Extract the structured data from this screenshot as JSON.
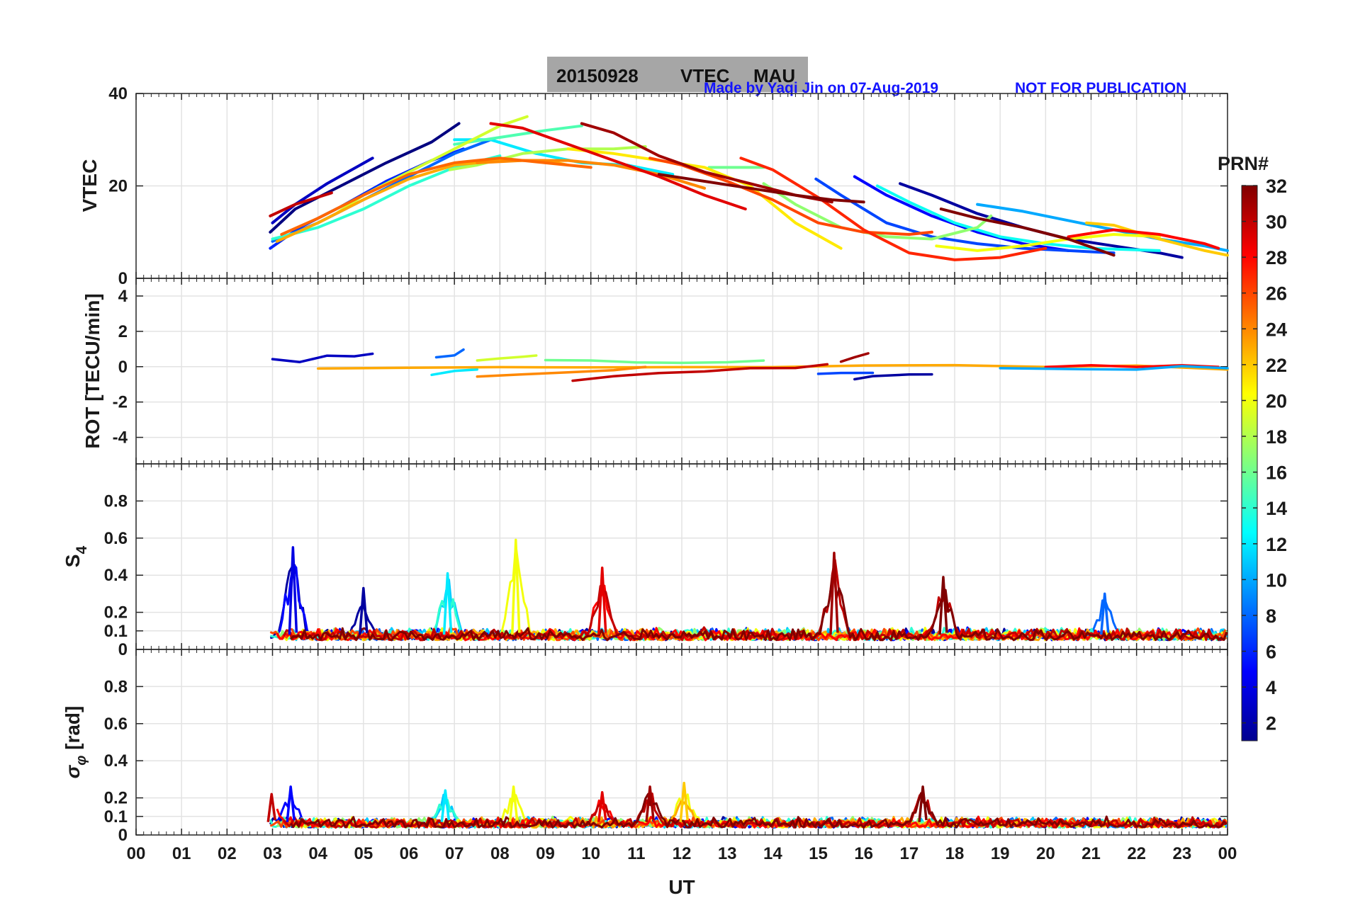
{
  "title": {
    "date": "20150928",
    "product": "VTEC",
    "station": "MAU",
    "credit": "Made by Yaqi Jin on 07-Aug-2019",
    "notice": "NOT FOR PUBLICATION",
    "box_color": "#a6a6a6",
    "note_color": "#1414ff"
  },
  "colorbar": {
    "title": "PRN#",
    "range": [
      1,
      32
    ],
    "ticks": [
      "2",
      "4",
      "6",
      "8",
      "10",
      "12",
      "14",
      "16",
      "18",
      "20",
      "22",
      "24",
      "26",
      "28",
      "30",
      "32"
    ],
    "colormap": "jet"
  },
  "x_axis": {
    "label": "UT",
    "range": [
      0,
      24
    ],
    "ticks": [
      "00",
      "01",
      "02",
      "03",
      "04",
      "05",
      "06",
      "07",
      "08",
      "09",
      "10",
      "11",
      "12",
      "13",
      "14",
      "15",
      "16",
      "17",
      "18",
      "19",
      "20",
      "21",
      "22",
      "23",
      "00"
    ]
  },
  "chart_data": [
    {
      "type": "line",
      "panel": "vtec",
      "ylabel": "VTEC",
      "ylim": [
        0,
        40
      ],
      "yticks": [
        "0",
        "20",
        "40"
      ],
      "xlim": [
        0,
        24
      ],
      "grid": true,
      "series": [
        {
          "prn": 1,
          "x": [
            2.95,
            3.5,
            4.5,
            5.5,
            6.5,
            7.1
          ],
          "y": [
            10,
            15,
            20,
            25,
            29.5,
            33.5
          ]
        },
        {
          "prn": 2,
          "x": [
            16.8,
            17.5,
            18.5,
            19.5,
            20.5,
            21.5,
            22.5,
            23
          ],
          "y": [
            20.5,
            18,
            14,
            11,
            8.5,
            7,
            5.5,
            4.5
          ]
        },
        {
          "prn": 3,
          "x": [
            3.0,
            3.5,
            4.2,
            5.2
          ],
          "y": [
            12,
            16,
            20.5,
            26
          ]
        },
        {
          "prn": 5,
          "x": [
            15.8,
            16.5,
            17.5,
            18.5,
            19.5,
            20.5
          ],
          "y": [
            22,
            18,
            13.5,
            10,
            7.5,
            6
          ]
        },
        {
          "prn": 6,
          "x": [
            2.95,
            3.6,
            4.5,
            5.5,
            6.5,
            7.2
          ],
          "y": [
            6.5,
            11,
            15.5,
            21,
            25.5,
            28
          ]
        },
        {
          "prn": 7,
          "x": [
            14.95,
            15.5,
            16.5,
            17.5,
            18.5,
            19.5,
            20.5,
            21.5
          ],
          "y": [
            21.5,
            18,
            12,
            9,
            7.5,
            6.5,
            6,
            5.5
          ]
        },
        {
          "prn": 8,
          "x": [
            3.0,
            4.0,
            5.0,
            6.0,
            7.0,
            7.8
          ],
          "y": [
            8,
            12,
            17,
            22,
            27,
            30
          ]
        },
        {
          "prn": 10,
          "x": [
            18.5,
            19.5,
            20.5,
            21.5,
            22.5,
            23.5,
            24
          ],
          "y": [
            16,
            14.5,
            12.5,
            10.5,
            8.5,
            7,
            6
          ]
        },
        {
          "prn": 12,
          "x": [
            7.0,
            7.8,
            8.8,
            9.8,
            10.8,
            11.8
          ],
          "y": [
            30,
            30,
            27,
            25,
            24.5,
            22.5
          ]
        },
        {
          "prn": 13,
          "x": [
            16.3,
            17,
            18,
            19,
            20,
            21,
            22.5
          ],
          "y": [
            20,
            16.5,
            12,
            9,
            7.5,
            6.5,
            6
          ]
        },
        {
          "prn": 14,
          "x": [
            3.0,
            4.0,
            5.0,
            6.0,
            7.0,
            8.0
          ],
          "y": [
            8.5,
            11,
            15,
            20,
            24,
            26.5
          ]
        },
        {
          "prn": 15,
          "x": [
            7.0,
            8.0,
            9.0,
            9.8
          ],
          "y": [
            29,
            30.5,
            32,
            33
          ]
        },
        {
          "prn": 16,
          "x": [
            12.6,
            13.2,
            13.8
          ],
          "y": [
            24,
            24,
            24
          ]
        },
        {
          "prn": 17,
          "x": [
            13.8,
            14.5,
            15.5,
            16.5,
            17.5,
            18.5,
            18.8
          ],
          "y": [
            20.5,
            16,
            11,
            9,
            8.5,
            11,
            13.5
          ]
        },
        {
          "prn": 18,
          "x": [
            6.9,
            7.5,
            8.5,
            9.5,
            10.5,
            11.2
          ],
          "y": [
            23.5,
            24.5,
            27,
            28,
            28,
            28.5
          ]
        },
        {
          "prn": 19,
          "x": [
            4.4,
            5.0,
            6.0,
            7.0,
            8.0,
            8.6
          ],
          "y": [
            14,
            18,
            23,
            28,
            33,
            35
          ]
        },
        {
          "prn": 20,
          "x": [
            17.6,
            18.5,
            19.5,
            20.5,
            21.5,
            22.5
          ],
          "y": [
            7,
            6,
            7,
            8.5,
            9.5,
            9
          ]
        },
        {
          "prn": 21,
          "x": [
            9.5,
            10.5,
            11.5,
            12.5,
            13.5,
            14.5,
            15.5
          ],
          "y": [
            28,
            27,
            25.5,
            24,
            20,
            12,
            6.5
          ]
        },
        {
          "prn": 22,
          "x": [
            20.9,
            21.5,
            22.5,
            23.5,
            24
          ],
          "y": [
            12,
            11.5,
            8.5,
            6,
            5
          ]
        },
        {
          "prn": 23,
          "x": [
            3.1,
            4.0,
            5.0,
            6.0,
            7.0,
            8.0,
            9.0,
            9.5
          ],
          "y": [
            8,
            12,
            17,
            21.5,
            24.5,
            25.5,
            25.5,
            24.5
          ]
        },
        {
          "prn": 24,
          "x": [
            7.5,
            8.5,
            9.5,
            10.5,
            11.5,
            12.5
          ],
          "y": [
            25,
            25.5,
            25.5,
            24.5,
            22.5,
            19.5
          ]
        },
        {
          "prn": 25,
          "x": [
            3.2,
            4.0,
            5.0,
            6.0,
            7.0,
            8.0,
            9.0,
            10.0
          ],
          "y": [
            9.5,
            13,
            18,
            22.5,
            25,
            26,
            25,
            24
          ]
        },
        {
          "prn": 26,
          "x": [
            11.3,
            12,
            13,
            14,
            15,
            16,
            17,
            17.5
          ],
          "y": [
            26,
            24.5,
            21,
            17,
            12,
            10,
            9.5,
            10
          ]
        },
        {
          "prn": 27,
          "x": [
            13.3,
            14,
            15,
            16,
            17,
            18,
            19,
            20
          ],
          "y": [
            26,
            23.5,
            17.5,
            10.5,
            5.5,
            4,
            4.5,
            6.5
          ]
        },
        {
          "prn": 28,
          "x": [
            20.5,
            21.5,
            22.5,
            23.5,
            23.8
          ],
          "y": [
            9,
            10.5,
            9.5,
            7.5,
            6.5
          ]
        },
        {
          "prn": 29,
          "x": [
            7.8,
            8.5,
            9.5,
            10.5,
            11.5,
            12.5,
            13.4
          ],
          "y": [
            33.5,
            32.5,
            29,
            25.5,
            22,
            18,
            15
          ]
        },
        {
          "prn": 30,
          "x": [
            2.95,
            3.5,
            4.3
          ],
          "y": [
            13.5,
            16,
            18.5
          ]
        },
        {
          "prn": 31,
          "x": [
            9.8,
            10.5,
            11.5,
            12.5,
            13.5,
            14.5,
            15.3
          ],
          "y": [
            33.5,
            31.5,
            26.5,
            23,
            20.5,
            18,
            16.5
          ]
        },
        {
          "prn": 32,
          "x": [
            11.5,
            12.5,
            13.5,
            14.5,
            15.3,
            16
          ],
          "y": [
            22.5,
            21,
            19.5,
            18,
            17,
            16.5
          ]
        },
        {
          "prn": 32,
          "x": [
            17.7,
            18.5,
            19.5,
            20.5,
            21.5
          ],
          "y": [
            15,
            13,
            11,
            8.5,
            5
          ]
        }
      ]
    },
    {
      "type": "line",
      "panel": "rot",
      "ylabel": "ROT [TECU/min]",
      "ylim": [
        -5.5,
        5
      ],
      "yticks": [
        "-4",
        "-2",
        "0",
        "2",
        "4"
      ],
      "xlim": [
        0,
        24
      ],
      "grid": true,
      "series": [
        {
          "prn": 3,
          "x": [
            3.0,
            3.6,
            4.2,
            4.8,
            5.2
          ],
          "y": [
            0.4,
            0.3,
            0.6,
            0.5,
            0.7
          ]
        },
        {
          "prn": 8,
          "x": [
            6.6,
            7.0,
            7.2
          ],
          "y": [
            0.5,
            0.7,
            0.9
          ]
        },
        {
          "prn": 12,
          "x": [
            6.5,
            7.0,
            7.5
          ],
          "y": [
            -0.5,
            -0.3,
            -0.2
          ]
        },
        {
          "prn": 16,
          "x": [
            9.0,
            10.0,
            11.0,
            12.0,
            13.0,
            13.8
          ],
          "y": [
            0.4,
            0.3,
            0.3,
            0.2,
            0.3,
            0.4
          ]
        },
        {
          "prn": 19,
          "x": [
            7.5,
            8.0,
            8.5,
            8.8
          ],
          "y": [
            0.3,
            0.4,
            0.5,
            0.7
          ]
        },
        {
          "prn": 23,
          "x": [
            4.0,
            6.0,
            8.0,
            10.0,
            12.0,
            14.0,
            16.0,
            18.0,
            20.0,
            22.0,
            24.0
          ],
          "y": [
            -0.1,
            -0.1,
            0.0,
            0.0,
            0.0,
            -0.1,
            0.0,
            0.1,
            0.0,
            0.0,
            -0.1
          ]
        },
        {
          "prn": 24,
          "x": [
            7.5,
            8.5,
            9.5,
            10.5,
            11.2
          ],
          "y": [
            -0.5,
            -0.4,
            -0.3,
            -0.2,
            -0.1
          ]
        },
        {
          "prn": 7,
          "x": [
            15.0,
            15.5,
            16.2
          ],
          "y": [
            -0.4,
            -0.4,
            -0.3
          ]
        },
        {
          "prn": 2,
          "x": [
            15.8,
            16.2,
            17.0,
            17.5
          ],
          "y": [
            -0.7,
            -0.6,
            -0.5,
            -0.4
          ]
        },
        {
          "prn": 30,
          "x": [
            9.6,
            10.5,
            11.5,
            12.5,
            13.5,
            14.5,
            15.2
          ],
          "y": [
            -0.8,
            -0.6,
            -0.4,
            -0.2,
            -0.1,
            0.0,
            0.1
          ]
        },
        {
          "prn": 31,
          "x": [
            15.5,
            15.8,
            16.1
          ],
          "y": [
            0.3,
            0.5,
            0.8
          ]
        },
        {
          "prn": 28,
          "x": [
            20.0,
            21.0,
            22.0,
            23.0,
            23.8
          ],
          "y": [
            0.0,
            0.1,
            0.0,
            0.0,
            0.0
          ]
        },
        {
          "prn": 10,
          "x": [
            19.0,
            21.0,
            22.0,
            23.0,
            24.0
          ],
          "y": [
            0.0,
            -0.1,
            -0.1,
            0.0,
            0.0
          ]
        }
      ]
    },
    {
      "type": "line",
      "panel": "s4",
      "ylabel": "S4",
      "ylim": [
        0,
        1
      ],
      "yticks": [
        "0",
        "0.1",
        "0.2",
        "0.4",
        "0.6",
        "0.8"
      ],
      "xlim": [
        0,
        24
      ],
      "grid": true,
      "peaks": [
        {
          "prn": 4,
          "x": 3.45,
          "y": 0.55
        },
        {
          "prn": 2,
          "x": 5.0,
          "y": 0.33
        },
        {
          "prn": 12,
          "x": 6.85,
          "y": 0.41
        },
        {
          "prn": 20,
          "x": 8.35,
          "y": 0.59
        },
        {
          "prn": 29,
          "x": 10.25,
          "y": 0.44
        },
        {
          "prn": 31,
          "x": 15.35,
          "y": 0.52
        },
        {
          "prn": 32,
          "x": 17.75,
          "y": 0.39
        },
        {
          "prn": 8,
          "x": 21.3,
          "y": 0.3
        }
      ],
      "baseline": [
        0.05,
        0.12
      ]
    },
    {
      "type": "line",
      "panel": "sigma_phi",
      "ylabel": "σφ [rad]",
      "ylim": [
        0,
        1
      ],
      "yticks": [
        "0",
        "0.1",
        "0.2",
        "0.4",
        "0.6",
        "0.8"
      ],
      "xlim": [
        0,
        24
      ],
      "grid": true,
      "peaks": [
        {
          "prn": 30,
          "x": 2.98,
          "y": 0.22
        },
        {
          "prn": 5,
          "x": 3.4,
          "y": 0.26
        },
        {
          "prn": 12,
          "x": 6.8,
          "y": 0.24
        },
        {
          "prn": 20,
          "x": 8.3,
          "y": 0.26
        },
        {
          "prn": 29,
          "x": 10.25,
          "y": 0.23
        },
        {
          "prn": 31,
          "x": 11.3,
          "y": 0.26
        },
        {
          "prn": 22,
          "x": 12.05,
          "y": 0.28
        },
        {
          "prn": 32,
          "x": 17.3,
          "y": 0.26
        }
      ],
      "baseline": [
        0.04,
        0.1
      ]
    }
  ]
}
